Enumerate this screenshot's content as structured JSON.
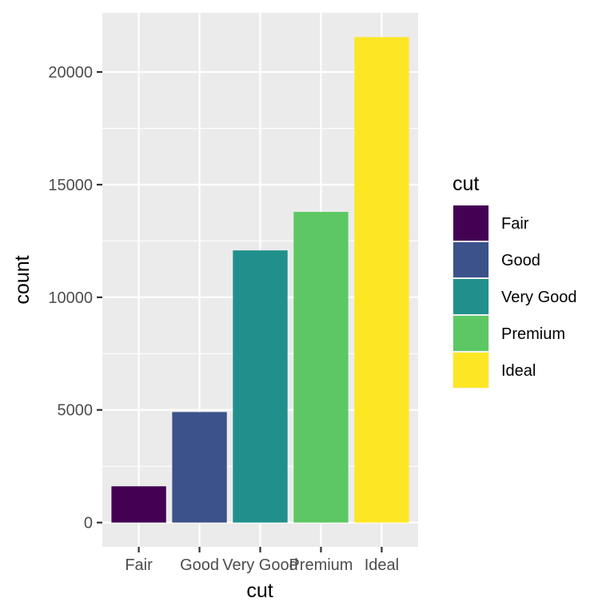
{
  "chart_data": {
    "type": "bar",
    "categories": [
      "Fair",
      "Good",
      "Very Good",
      "Premium",
      "Ideal"
    ],
    "values": [
      1610,
      4906,
      12082,
      13791,
      21551
    ],
    "colors": [
      "#440154",
      "#3B528B",
      "#21908C",
      "#5DC863",
      "#FDE725"
    ],
    "xlabel": "cut",
    "ylabel": "count",
    "ylim": [
      -1078,
      22629
    ],
    "yticks": [
      0,
      5000,
      10000,
      15000,
      20000
    ],
    "ytick_labels": [
      "0",
      "5000",
      "10000",
      "15000",
      "20000"
    ],
    "grid": true,
    "legend": {
      "title": "cut",
      "position": "right",
      "items": [
        "Fair",
        "Good",
        "Very Good",
        "Premium",
        "Ideal"
      ]
    }
  }
}
